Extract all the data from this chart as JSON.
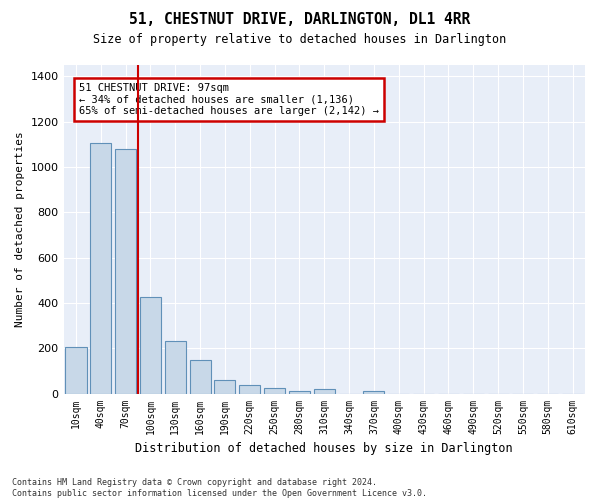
{
  "title": "51, CHESTNUT DRIVE, DARLINGTON, DL1 4RR",
  "subtitle": "Size of property relative to detached houses in Darlington",
  "xlabel": "Distribution of detached houses by size in Darlington",
  "ylabel": "Number of detached properties",
  "bar_values": [
    205,
    1105,
    1080,
    425,
    230,
    148,
    58,
    38,
    25,
    10,
    18,
    0,
    10,
    0,
    0,
    0,
    0,
    0,
    0,
    0,
    0
  ],
  "bar_labels": [
    "10sqm",
    "40sqm",
    "70sqm",
    "100sqm",
    "130sqm",
    "160sqm",
    "190sqm",
    "220sqm",
    "250sqm",
    "280sqm",
    "310sqm",
    "340sqm",
    "370sqm",
    "400sqm",
    "430sqm",
    "460sqm",
    "490sqm",
    "520sqm",
    "550sqm",
    "580sqm",
    "610sqm"
  ],
  "ylim": [
    0,
    1450
  ],
  "yticks": [
    0,
    200,
    400,
    600,
    800,
    1000,
    1200,
    1400
  ],
  "property_line_x": 2.5,
  "property_sqm": 97,
  "annotation_text": "51 CHESTNUT DRIVE: 97sqm\n← 34% of detached houses are smaller (1,136)\n65% of semi-detached houses are larger (2,142) →",
  "bar_color": "#c8d8e8",
  "bar_edge_color": "#6090b8",
  "line_color": "#cc0000",
  "annotation_box_color": "#cc0000",
  "bg_color": "#e8eef8",
  "footer_text": "Contains HM Land Registry data © Crown copyright and database right 2024.\nContains public sector information licensed under the Open Government Licence v3.0.",
  "grid_color": "#ffffff"
}
